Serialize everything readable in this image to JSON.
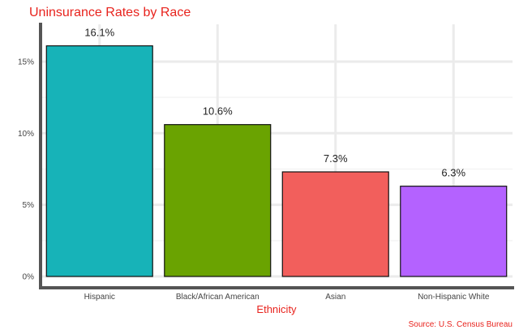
{
  "chart_data": {
    "type": "bar",
    "title": "Uninsurance Rates by Race",
    "xlabel": "Ethnicity",
    "ylabel": "",
    "caption": "Source: U.S. Census Bureau",
    "categories": [
      "Hispanic",
      "Black/African American",
      "Asian",
      "Non-Hispanic White"
    ],
    "values": [
      16.1,
      10.6,
      7.3,
      6.3
    ],
    "data_labels": [
      "16.1%",
      "10.6%",
      "7.3%",
      "6.3%"
    ],
    "colors": [
      "#17b3b8",
      "#6aa301",
      "#f25f5c",
      "#b462ff"
    ],
    "ylim": [
      0,
      17.6
    ],
    "yticks": [
      0,
      5,
      10,
      15
    ],
    "ytick_labels": [
      "0%",
      "5%",
      "10%",
      "15%"
    ],
    "grid": true,
    "legend": "none",
    "title_color": "#e8231d"
  }
}
